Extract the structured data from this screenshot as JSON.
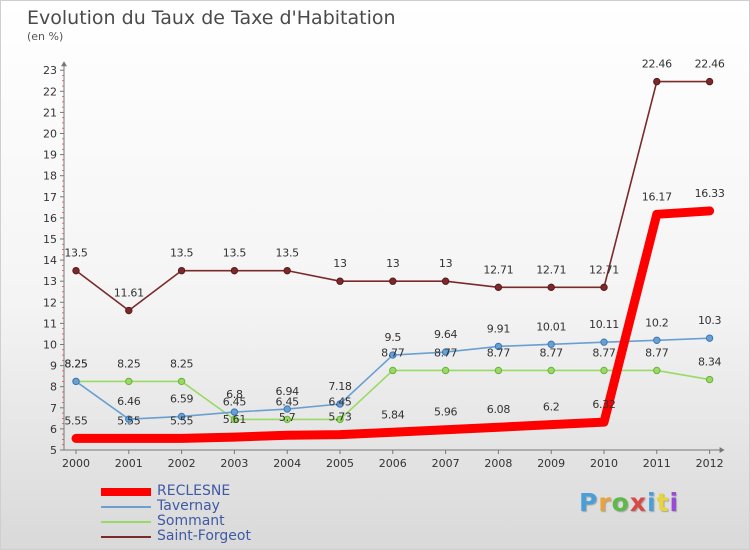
{
  "title": "Evolution du Taux de Taxe d'Habitation",
  "subtitle": "(en %)",
  "logo": {
    "text": "Proxiti",
    "colors": [
      "#4a9fd8",
      "#e8a33c",
      "#5fb84a",
      "#d84a4a",
      "#4a9fd8",
      "#e8d43c",
      "#9a4ad8"
    ]
  },
  "chart_data": {
    "type": "line",
    "title": "Evolution du Taux de Taxe d'Habitation",
    "ylabel": "(en %)",
    "xlabel": "",
    "x": [
      "2000",
      "2001",
      "2002",
      "2003",
      "2004",
      "2005",
      "2006",
      "2007",
      "2008",
      "2009",
      "2010",
      "2011",
      "2012"
    ],
    "ylim": [
      5,
      23
    ],
    "yticks": [
      "5",
      "6",
      "7",
      "8",
      "9",
      "10",
      "11",
      "12",
      "13",
      "14",
      "15",
      "16",
      "17",
      "18",
      "19",
      "20",
      "21",
      "22",
      "23"
    ],
    "grid": false,
    "legend": "bottom-left",
    "series": [
      {
        "name": "RECLESNE",
        "color": "#ff0000",
        "values": [
          5.55,
          5.55,
          5.55,
          5.61,
          5.7,
          5.73,
          5.84,
          5.96,
          6.08,
          6.2,
          6.32,
          16.17,
          16.33
        ],
        "labels": [
          "5.55",
          "5.55",
          "5.55",
          "5.61",
          "5.7",
          "5.73",
          "5.84",
          "5.96",
          "6.08",
          "6.2",
          "6.32",
          "16.17",
          "16.33"
        ]
      },
      {
        "name": "Tavernay",
        "color": "#6a9fd2",
        "values": [
          8.25,
          6.46,
          6.59,
          6.8,
          6.94,
          7.18,
          9.5,
          9.64,
          9.91,
          10.01,
          10.11,
          10.2,
          10.3
        ],
        "labels": [
          "8.25",
          "6.46",
          "6.59",
          "6.8",
          "6.94",
          "7.18",
          "9.5",
          "9.64",
          "9.91",
          "10.01",
          "10.11",
          "10.2",
          "10.3"
        ]
      },
      {
        "name": "Sommant",
        "color": "#99d966",
        "values": [
          8.25,
          8.25,
          8.25,
          6.45,
          6.45,
          6.45,
          8.77,
          8.77,
          8.77,
          8.77,
          8.77,
          8.77,
          8.34
        ],
        "labels": [
          "8.25",
          "8.25",
          "8.25",
          "6.45",
          "6.45",
          "6.45",
          "8.77",
          "8.77",
          "8.77",
          "8.77",
          "8.77",
          "8.77",
          "8.34"
        ]
      },
      {
        "name": "Saint-Forgeot",
        "color": "#7a2a2a",
        "values": [
          13.5,
          11.61,
          13.5,
          13.5,
          13.5,
          13,
          13,
          13,
          12.71,
          12.71,
          12.71,
          22.46,
          22.46
        ],
        "labels": [
          "13.5",
          "11.61",
          "13.5",
          "13.5",
          "13.5",
          "13",
          "13",
          "13",
          "12.71",
          "12.71",
          "12.71",
          "22.46",
          "22.46"
        ]
      }
    ]
  }
}
